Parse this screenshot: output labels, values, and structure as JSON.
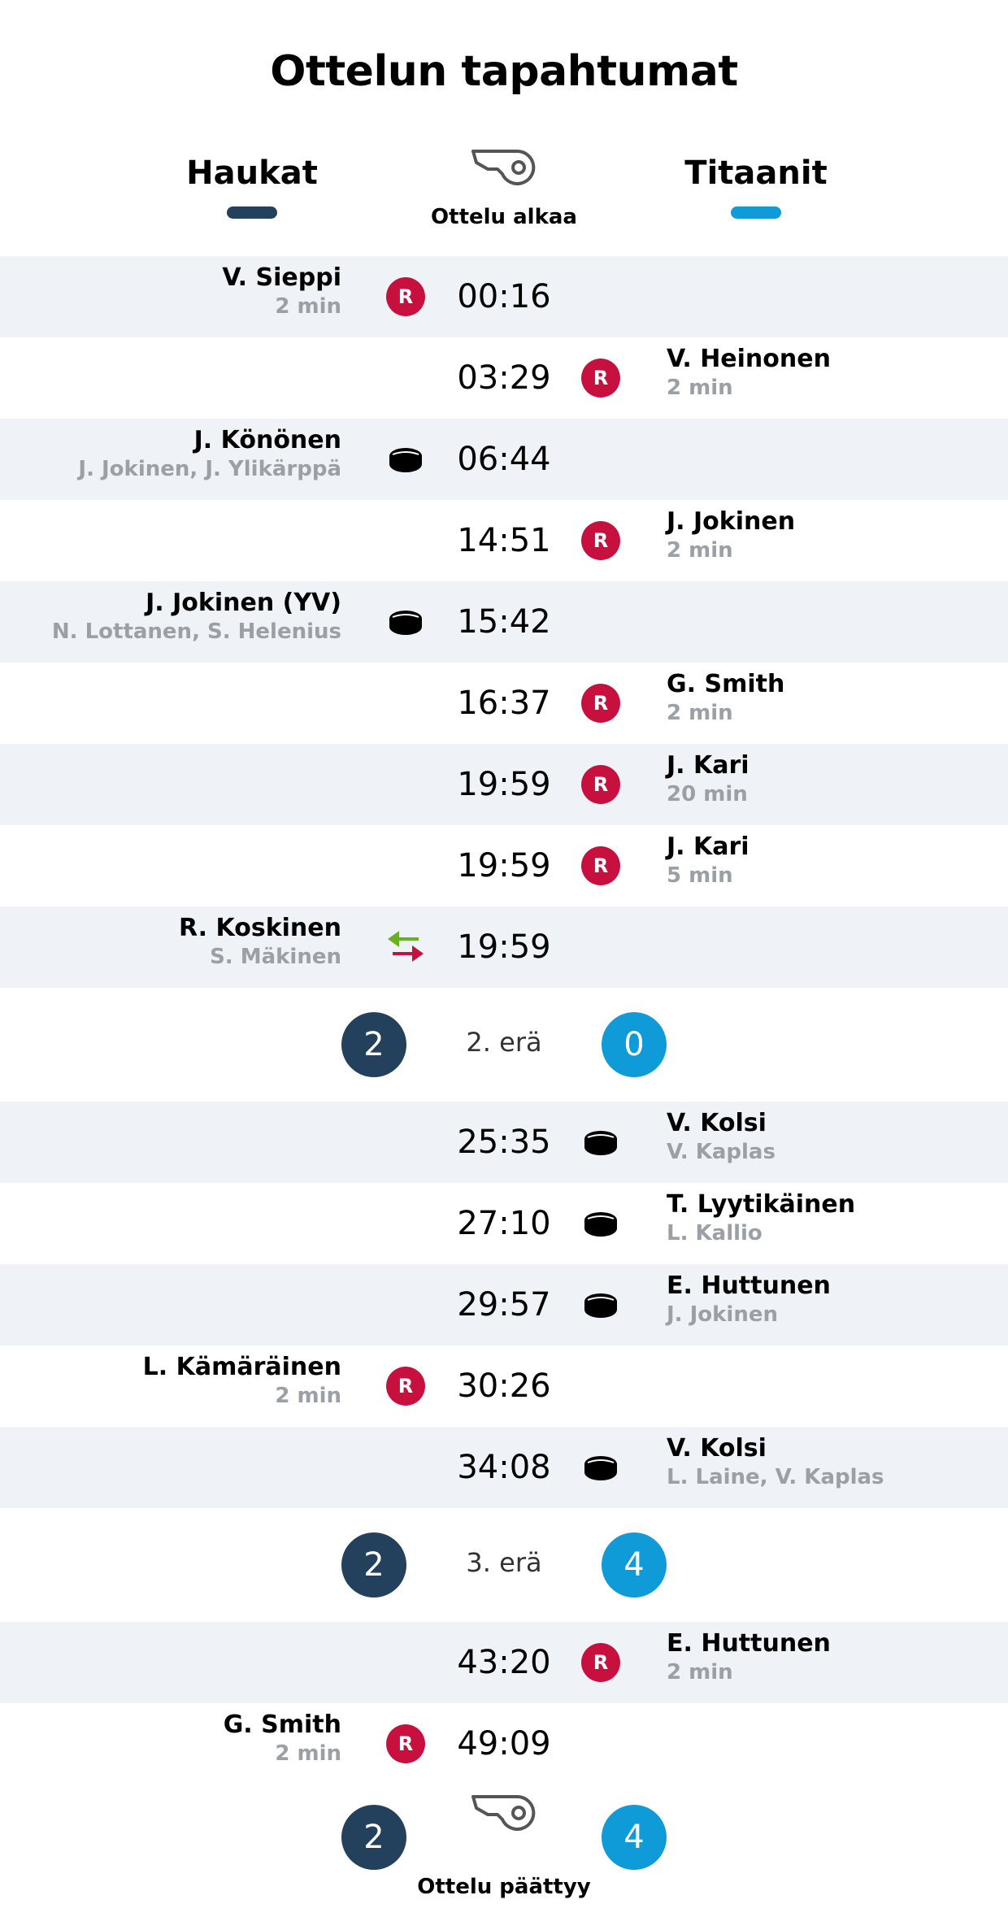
{
  "title": "Ottelun tapahtumat",
  "colors": {
    "home": "#23405c",
    "away": "#0f9bd7",
    "penalty": "#c8103e",
    "goal_in": "#6ab023",
    "goal_out": "#c8103e"
  },
  "teams": {
    "home": "Haukat",
    "away": "Titaanit"
  },
  "start_label": "Ottelu alkaa",
  "end_label": "Ottelu päättyy",
  "events": [
    {
      "time": "00:16",
      "side": "home",
      "type": "penalty",
      "icon": "penalty-icon",
      "badge": "R",
      "name": "V. Sieppi",
      "detail": "2 min"
    },
    {
      "time": "03:29",
      "side": "away",
      "type": "penalty",
      "icon": "penalty-icon",
      "badge": "R",
      "name": "V. Heinonen",
      "detail": "2 min"
    },
    {
      "time": "06:44",
      "side": "home",
      "type": "goal",
      "icon": "puck-icon",
      "name": "J. Könönen",
      "detail": "J. Jokinen, J. Ylikärppä"
    },
    {
      "time": "14:51",
      "side": "away",
      "type": "penalty",
      "icon": "penalty-icon",
      "badge": "R",
      "name": "J. Jokinen",
      "detail": "2 min"
    },
    {
      "time": "15:42",
      "side": "home",
      "type": "goal",
      "icon": "puck-icon",
      "name": "J. Jokinen (YV)",
      "detail": "N. Lottanen, S. Helenius"
    },
    {
      "time": "16:37",
      "side": "away",
      "type": "penalty",
      "icon": "penalty-icon",
      "badge": "R",
      "name": "G. Smith",
      "detail": "2 min"
    },
    {
      "time": "19:59",
      "side": "away",
      "type": "penalty",
      "icon": "penalty-icon",
      "badge": "R",
      "name": "J. Kari",
      "detail": "20 min"
    },
    {
      "time": "19:59",
      "side": "away",
      "type": "penalty",
      "icon": "penalty-icon",
      "badge": "R",
      "name": "J. Kari",
      "detail": "5 min"
    },
    {
      "time": "19:59",
      "side": "home",
      "type": "substitution",
      "icon": "swap-icon",
      "name": "R. Koskinen",
      "detail": "S. Mäkinen"
    },
    {
      "period_label": "2. erä",
      "home_score": "2",
      "away_score": "0"
    },
    {
      "time": "25:35",
      "side": "away",
      "type": "goal",
      "icon": "puck-icon",
      "name": "V. Kolsi",
      "detail": "V. Kaplas"
    },
    {
      "time": "27:10",
      "side": "away",
      "type": "goal",
      "icon": "puck-icon",
      "name": "T. Lyytikäinen",
      "detail": "L. Kallio"
    },
    {
      "time": "29:57",
      "side": "away",
      "type": "goal",
      "icon": "puck-icon",
      "name": "E. Huttunen",
      "detail": "J. Jokinen"
    },
    {
      "time": "30:26",
      "side": "home",
      "type": "penalty",
      "icon": "penalty-icon",
      "badge": "R",
      "name": "L. Kämäräinen",
      "detail": "2 min"
    },
    {
      "time": "34:08",
      "side": "away",
      "type": "goal",
      "icon": "puck-icon",
      "name": "V. Kolsi",
      "detail": "L. Laine, V. Kaplas"
    },
    {
      "period_label": "3. erä",
      "home_score": "2",
      "away_score": "4"
    },
    {
      "time": "43:20",
      "side": "away",
      "type": "penalty",
      "icon": "penalty-icon",
      "badge": "R",
      "name": "E. Huttunen",
      "detail": "2 min"
    },
    {
      "time": "49:09",
      "side": "home",
      "type": "penalty",
      "icon": "penalty-icon",
      "badge": "R",
      "name": "G. Smith",
      "detail": "2 min"
    }
  ],
  "final_score": {
    "home": "2",
    "away": "4"
  }
}
